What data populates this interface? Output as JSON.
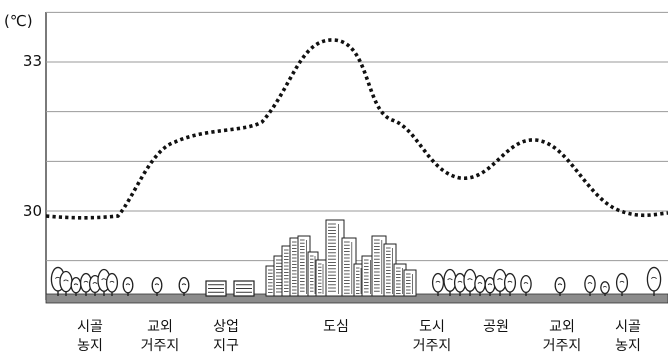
{
  "unit_label": "(℃)",
  "y_ticks": [
    {
      "value": 33,
      "label": "33"
    },
    {
      "value": 30,
      "label": "30"
    }
  ],
  "categories": [
    {
      "line1": "시골",
      "line2": "농지"
    },
    {
      "line1": "교외",
      "line2": "거주지"
    },
    {
      "line1": "상업",
      "line2": "지구"
    },
    {
      "line1": "도심",
      "line2": ""
    },
    {
      "line1": "도시",
      "line2": "거주지"
    },
    {
      "line1": "공원",
      "line2": ""
    },
    {
      "line1": "교외",
      "line2": "거주지"
    },
    {
      "line1": "시골",
      "line2": "농지"
    }
  ],
  "chart_data": {
    "type": "line",
    "ylabel": "(℃)",
    "ylim": [
      29.0,
      34.0
    ],
    "categories": [
      "시골 농지",
      "교외 거주지",
      "상업 지구",
      "도심",
      "도시 거주지",
      "공원",
      "교외 거주지",
      "시골 농지"
    ],
    "series": [
      {
        "values": [
          29.9,
          31.5,
          31.8,
          33.4,
          31.8,
          30.7,
          31.4,
          30.0
        ]
      }
    ]
  }
}
